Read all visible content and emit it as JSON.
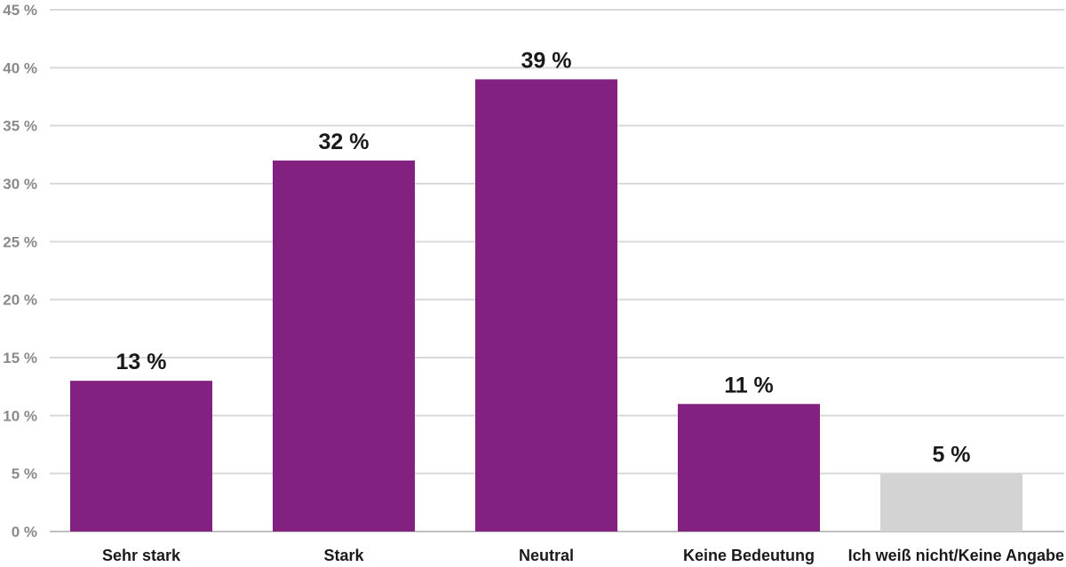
{
  "chart_data": {
    "type": "bar",
    "title": "",
    "xlabel": "",
    "ylabel": "",
    "categories": [
      "Sehr stark",
      "Stark",
      "Neutral",
      "Keine Bedeutung",
      "Ich weiß nicht/Keine Angabe"
    ],
    "values": [
      13,
      32,
      39,
      11,
      5
    ],
    "data_labels": [
      "13 %",
      "32 %",
      "39 %",
      "11 %",
      "5 %"
    ],
    "ylim": [
      0,
      45
    ],
    "yticks": [
      0,
      5,
      10,
      15,
      20,
      25,
      30,
      35,
      40,
      45
    ],
    "ytick_labels": [
      "0 %",
      "5 %",
      "10 %",
      "15 %",
      "20 %",
      "25 %",
      "30 %",
      "35 %",
      "40 %",
      "45 %"
    ],
    "grid": true,
    "legend": "none",
    "colors": {
      "main": "#82217f",
      "last": "#d3d3d3"
    }
  }
}
